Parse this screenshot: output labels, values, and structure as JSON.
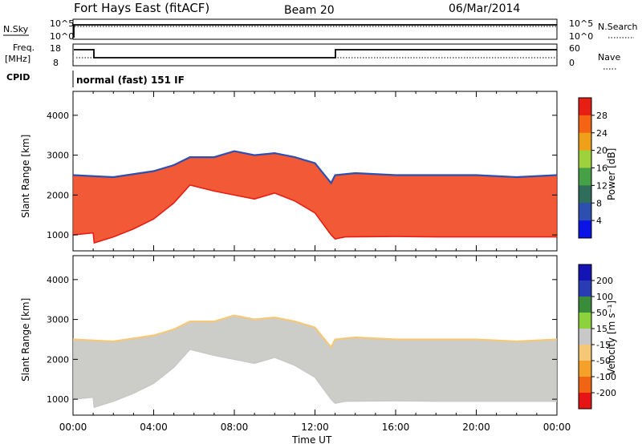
{
  "header": {
    "title": "Fort Hays East (fitACF)",
    "beam": "Beam 20",
    "date": "06/Mar/2014"
  },
  "panels": {
    "nsky": {
      "left_label": "N.Sky",
      "ticks": [
        "10^5",
        "10^0"
      ],
      "right_ticks": [
        "10^5",
        "10^0"
      ],
      "right_label": "N.Search"
    },
    "freq": {
      "left_label_1": "Freq.",
      "left_label_2": "[MHz]",
      "ticks": [
        "18",
        "8"
      ],
      "right_ticks": [
        "60",
        "0"
      ],
      "right_label": "Nave"
    },
    "cpid": {
      "label": "CPID",
      "value": "normal (fast) 151 IF"
    }
  },
  "colors": {
    "power": [
      "#0a14e6",
      "#2d4fb0",
      "#2e6e5a",
      "#46a046",
      "#9ed23c",
      "#f0a018",
      "#f56414",
      "#e61e14"
    ],
    "velocity": [
      "#e61414",
      "#f06414",
      "#f5a028",
      "#f5c878",
      "#c8c8c8",
      "#8cd23c",
      "#3a8c3a",
      "#2a3cb4",
      "#1414b4"
    ],
    "data_fill": "#f03c14",
    "velocity_fill": "#c3c3be"
  },
  "chart_data": [
    {
      "type": "heatmap",
      "title": "",
      "ylabel": "Slant Range [km]",
      "xlabel": "",
      "ylim": [
        600,
        4600
      ],
      "xlim": [
        "00:00",
        "24:00"
      ],
      "y_ticks": [
        "1000",
        "2000",
        "3000",
        "4000"
      ],
      "x_ticks": [
        "00:00",
        "04:00",
        "08:00",
        "12:00",
        "16:00",
        "20:00",
        "00:00"
      ],
      "colorbar": {
        "label": "Power [dB]",
        "ticks": [
          "28",
          "24",
          "20",
          "16",
          "12",
          "8",
          "4"
        ]
      },
      "series": [
        {
          "kind": "lower_edge_km",
          "x": [
            0,
            1,
            1.05,
            2,
            3,
            4,
            5,
            5.8,
            7,
            8,
            9,
            10,
            11,
            12,
            12.8,
            13,
            13.5,
            16,
            18,
            20,
            22,
            24
          ],
          "values": [
            1000,
            1050,
            800,
            950,
            1150,
            1400,
            1800,
            2250,
            2100,
            2000,
            1900,
            2050,
            1850,
            1550,
            1000,
            900,
            950,
            960,
            950,
            950,
            950,
            950
          ]
        },
        {
          "kind": "upper_edge_km",
          "x": [
            0,
            2,
            4,
            5,
            5.8,
            7,
            8,
            9,
            10,
            11,
            12,
            12.8,
            13,
            14,
            16,
            18,
            20,
            22,
            24
          ],
          "values": [
            2500,
            2450,
            2600,
            2750,
            2950,
            2950,
            3100,
            3000,
            3050,
            2950,
            2800,
            2300,
            2500,
            2550,
            2500,
            2500,
            2500,
            2450,
            2500
          ]
        }
      ]
    },
    {
      "type": "heatmap",
      "title": "",
      "ylabel": "Slant Range [km]",
      "xlabel": "Time UT",
      "ylim": [
        600,
        4600
      ],
      "xlim": [
        "00:00",
        "24:00"
      ],
      "y_ticks": [
        "1000",
        "2000",
        "3000",
        "4000"
      ],
      "x_ticks": [
        "00:00",
        "04:00",
        "08:00",
        "12:00",
        "16:00",
        "20:00",
        "00:00"
      ],
      "colorbar": {
        "label": "Velocity [m s⁻¹]",
        "ticks": [
          "200",
          "100",
          "50",
          "15",
          "-15",
          "-50",
          "-100",
          "-200"
        ]
      },
      "series": [
        {
          "kind": "lower_edge_km",
          "x": [
            0,
            1,
            1.05,
            2,
            3,
            4,
            5,
            5.8,
            7,
            8,
            9,
            10,
            11,
            12,
            12.8,
            13,
            13.5,
            16,
            18,
            20,
            22,
            24
          ],
          "values": [
            1000,
            1050,
            800,
            950,
            1150,
            1400,
            1800,
            2250,
            2100,
            2000,
            1900,
            2050,
            1850,
            1550,
            1000,
            900,
            950,
            960,
            950,
            950,
            950,
            950
          ]
        },
        {
          "kind": "upper_edge_km",
          "x": [
            0,
            2,
            4,
            5,
            5.8,
            7,
            8,
            9,
            10,
            11,
            12,
            12.8,
            13,
            14,
            16,
            18,
            20,
            22,
            24
          ],
          "values": [
            2500,
            2450,
            2600,
            2750,
            2950,
            2950,
            3100,
            3000,
            3050,
            2950,
            2800,
            2300,
            2500,
            2550,
            2500,
            2500,
            2500,
            2450,
            2500
          ]
        }
      ]
    }
  ]
}
